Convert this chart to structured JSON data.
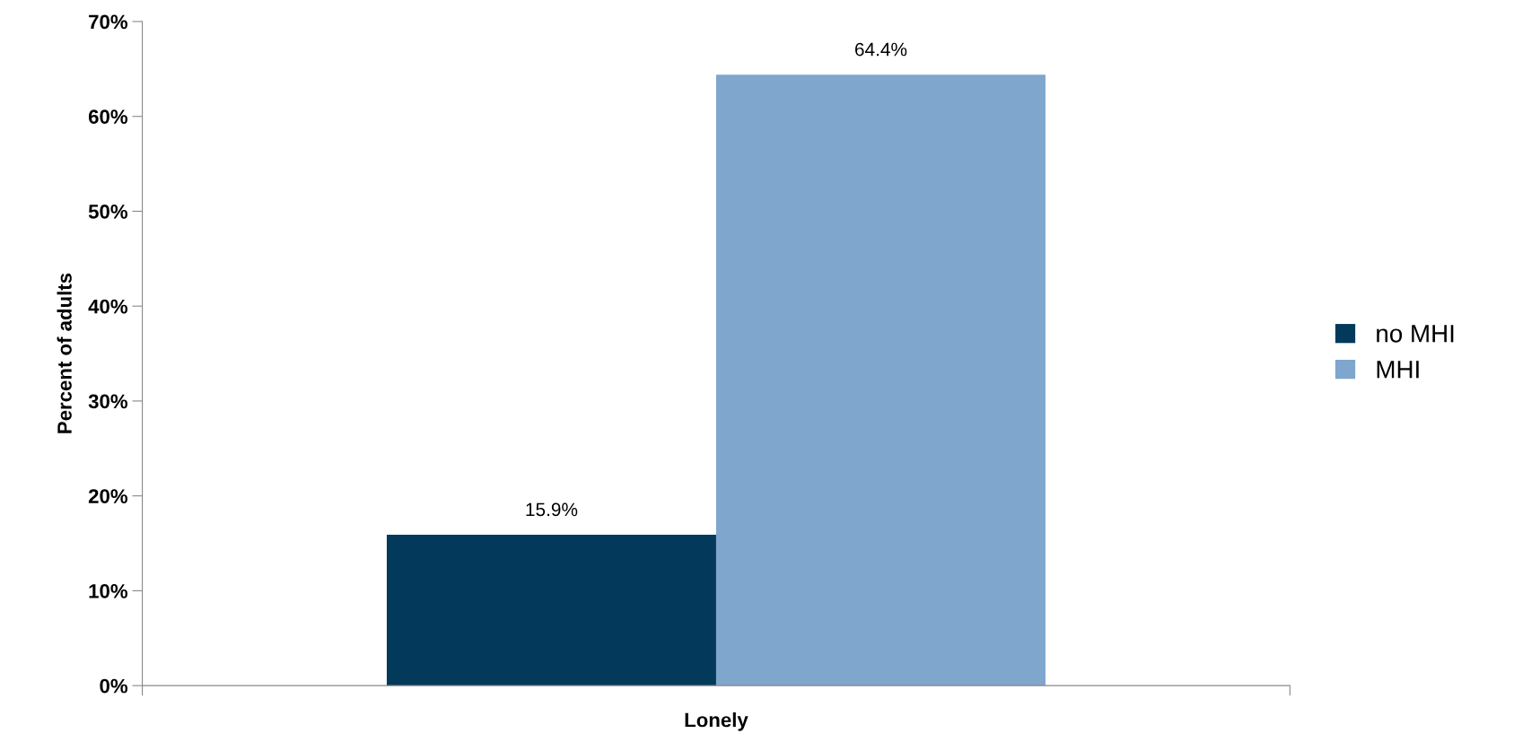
{
  "chart_data": {
    "type": "bar",
    "xlabel": "Lonely",
    "ylabel": "Percent of adults",
    "categories": [
      null
    ],
    "series": [
      {
        "name": "no MHI",
        "color": "#03395a",
        "values": [
          15.9
        ],
        "value_labels": [
          "15.9%"
        ]
      },
      {
        "name": "MHI",
        "color": "#7fa6cd",
        "values": [
          64.4
        ],
        "value_labels": [
          "64.4%"
        ]
      }
    ],
    "ylim": [
      0,
      70
    ],
    "yticks": [
      {
        "value": 0,
        "label": "0%"
      },
      {
        "value": 10,
        "label": "10%"
      },
      {
        "value": 20,
        "label": "20%"
      },
      {
        "value": 30,
        "label": "30%"
      },
      {
        "value": 40,
        "label": "40%"
      },
      {
        "value": 50,
        "label": "50%"
      },
      {
        "value": 60,
        "label": "60%"
      },
      {
        "value": 70,
        "label": "70%"
      }
    ],
    "grid": false,
    "legend": "right"
  }
}
